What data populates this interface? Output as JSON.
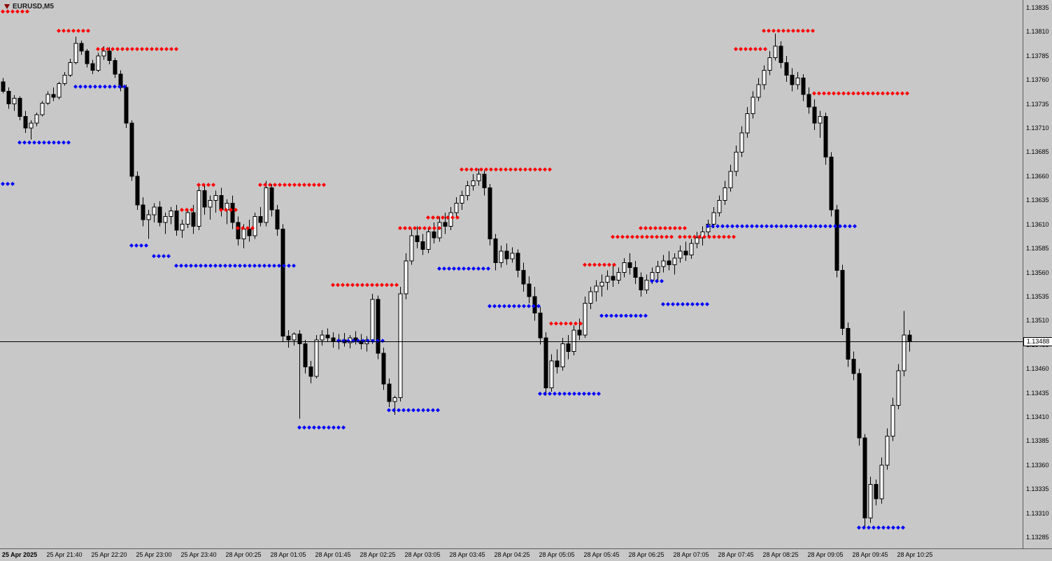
{
  "window": {
    "symbol_label": "EURUSD,M5"
  },
  "colors": {
    "background": "#C8C8C8",
    "bull": "#FFFFFF",
    "bear": "#000000",
    "outline": "#000000",
    "marker_red": "#FF0000",
    "marker_blue": "#0000FF",
    "axis_text": "#000000",
    "price_line": "#000000",
    "price_label_bg": "#FFFFFF"
  },
  "chart_data": {
    "type": "candlestick",
    "symbol": "EURUSD",
    "timeframe": "M5",
    "grid": false,
    "price_base": 1.13,
    "unit": 1e-05,
    "current_price": "1.13488",
    "y_axis": {
      "min": 1.13285,
      "max": 1.13835,
      "step": 0.00025,
      "ticks": [
        "1.13835",
        "1.13810",
        "1.13785",
        "1.13760",
        "1.13735",
        "1.13710",
        "1.13685",
        "1.13660",
        "1.13635",
        "1.13610",
        "1.13585",
        "1.13560",
        "1.13535",
        "1.13510",
        "1.13485",
        "1.13460",
        "1.13435",
        "1.13410",
        "1.13385",
        "1.13360",
        "1.13335",
        "1.13310",
        "1.13285"
      ]
    },
    "x_axis": {
      "labels": [
        "25 Apr 2025",
        "25 Apr 21:40",
        "25 Apr 22:20",
        "25 Apr 23:00",
        "25 Apr 23:40",
        "28 Apr 00:25",
        "28 Apr 01:05",
        "28 Apr 01:45",
        "28 Apr 02:25",
        "28 Apr 03:05",
        "28 Apr 03:45",
        "28 Apr 04:25",
        "28 Apr 05:05",
        "28 Apr 05:45",
        "28 Apr 06:25",
        "28 Apr 07:05",
        "28 Apr 07:45",
        "28 Apr 08:25",
        "28 Apr 09:05",
        "28 Apr 09:45",
        "28 Apr 10:25"
      ]
    },
    "candles": [
      [
        758,
        762,
        746,
        748
      ],
      [
        748,
        752,
        730,
        735
      ],
      [
        735,
        744,
        728,
        741
      ],
      [
        741,
        743,
        718,
        722
      ],
      [
        722,
        728,
        705,
        710
      ],
      [
        710,
        718,
        698,
        715
      ],
      [
        715,
        726,
        712,
        724
      ],
      [
        724,
        738,
        722,
        736
      ],
      [
        736,
        748,
        734,
        745
      ],
      [
        745,
        752,
        738,
        742
      ],
      [
        742,
        758,
        740,
        756
      ],
      [
        756,
        768,
        754,
        765
      ],
      [
        765,
        782,
        763,
        778
      ],
      [
        778,
        805,
        776,
        798
      ],
      [
        798,
        801,
        786,
        790
      ],
      [
        790,
        792,
        773,
        777
      ],
      [
        777,
        781,
        766,
        770
      ],
      [
        770,
        788,
        768,
        785
      ],
      [
        785,
        795,
        781,
        790
      ],
      [
        790,
        794,
        776,
        780
      ],
      [
        780,
        783,
        762,
        766
      ],
      [
        766,
        770,
        748,
        752
      ],
      [
        752,
        755,
        710,
        715
      ],
      [
        715,
        718,
        655,
        660
      ],
      [
        660,
        665,
        625,
        630
      ],
      [
        630,
        638,
        608,
        615
      ],
      [
        615,
        625,
        595,
        620
      ],
      [
        620,
        632,
        612,
        628
      ],
      [
        628,
        634,
        608,
        612
      ],
      [
        612,
        622,
        600,
        618
      ],
      [
        618,
        628,
        610,
        624
      ],
      [
        624,
        630,
        598,
        604
      ],
      [
        604,
        615,
        596,
        610
      ],
      [
        610,
        626,
        606,
        622
      ],
      [
        622,
        630,
        600,
        608
      ],
      [
        608,
        652,
        604,
        645
      ],
      [
        645,
        650,
        620,
        628
      ],
      [
        628,
        640,
        615,
        635
      ],
      [
        635,
        645,
        622,
        640
      ],
      [
        640,
        648,
        618,
        625
      ],
      [
        625,
        636,
        610,
        632
      ],
      [
        632,
        640,
        605,
        612
      ],
      [
        612,
        618,
        588,
        595
      ],
      [
        595,
        610,
        585,
        605
      ],
      [
        605,
        615,
        592,
        598
      ],
      [
        598,
        622,
        595,
        618
      ],
      [
        618,
        628,
        608,
        612
      ],
      [
        612,
        655,
        608,
        648
      ],
      [
        648,
        652,
        618,
        625
      ],
      [
        625,
        630,
        598,
        605
      ],
      [
        605,
        610,
        488,
        494
      ],
      [
        494,
        500,
        482,
        490
      ],
      [
        490,
        498,
        484,
        496
      ],
      [
        496,
        500,
        408,
        486
      ],
      [
        486,
        490,
        455,
        462
      ],
      [
        462,
        468,
        445,
        452
      ],
      [
        452,
        495,
        450,
        490
      ],
      [
        490,
        500,
        484,
        495
      ],
      [
        495,
        502,
        488,
        492
      ],
      [
        492,
        498,
        482,
        488
      ],
      [
        488,
        496,
        480,
        490
      ],
      [
        490,
        497,
        483,
        487
      ],
      [
        487,
        495,
        481,
        492
      ],
      [
        492,
        499,
        485,
        489
      ],
      [
        489,
        496,
        480,
        486
      ],
      [
        486,
        494,
        478,
        490
      ],
      [
        490,
        538,
        486,
        532
      ],
      [
        532,
        536,
        470,
        476
      ],
      [
        476,
        482,
        438,
        444
      ],
      [
        444,
        450,
        420,
        426
      ],
      [
        426,
        432,
        412,
        430
      ],
      [
        430,
        545,
        426,
        538
      ],
      [
        538,
        580,
        532,
        572
      ],
      [
        572,
        605,
        568,
        598
      ],
      [
        598,
        608,
        585,
        592
      ],
      [
        592,
        600,
        578,
        584
      ],
      [
        584,
        606,
        580,
        602
      ],
      [
        602,
        612,
        590,
        596
      ],
      [
        596,
        618,
        592,
        612
      ],
      [
        612,
        622,
        600,
        608
      ],
      [
        608,
        628,
        604,
        622
      ],
      [
        622,
        638,
        618,
        632
      ],
      [
        632,
        645,
        625,
        640
      ],
      [
        640,
        655,
        635,
        650
      ],
      [
        650,
        662,
        645,
        655
      ],
      [
        655,
        668,
        650,
        662
      ],
      [
        662,
        666,
        640,
        648
      ],
      [
        648,
        652,
        588,
        595
      ],
      [
        595,
        600,
        562,
        570
      ],
      [
        570,
        588,
        565,
        582
      ],
      [
        582,
        590,
        568,
        574
      ],
      [
        574,
        586,
        570,
        580
      ],
      [
        580,
        584,
        555,
        562
      ],
      [
        562,
        570,
        540,
        548
      ],
      [
        548,
        556,
        528,
        535
      ],
      [
        535,
        545,
        510,
        518
      ],
      [
        518,
        524,
        485,
        492
      ],
      [
        492,
        498,
        432,
        440
      ],
      [
        440,
        475,
        436,
        468
      ],
      [
        468,
        480,
        455,
        462
      ],
      [
        462,
        492,
        458,
        486
      ],
      [
        486,
        495,
        470,
        478
      ],
      [
        478,
        505,
        474,
        500
      ],
      [
        500,
        512,
        490,
        495
      ],
      [
        495,
        535,
        492,
        528
      ],
      [
        528,
        545,
        522,
        540
      ],
      [
        540,
        552,
        530,
        546
      ],
      [
        546,
        558,
        535,
        550
      ],
      [
        550,
        562,
        542,
        556
      ],
      [
        556,
        568,
        545,
        552
      ],
      [
        552,
        565,
        548,
        560
      ],
      [
        560,
        575,
        555,
        570
      ],
      [
        570,
        580,
        558,
        565
      ],
      [
        565,
        572,
        548,
        555
      ],
      [
        555,
        560,
        535,
        542
      ],
      [
        542,
        558,
        538,
        552
      ],
      [
        552,
        565,
        548,
        560
      ],
      [
        560,
        572,
        552,
        566
      ],
      [
        566,
        578,
        560,
        572
      ],
      [
        572,
        582,
        562,
        568
      ],
      [
        568,
        580,
        558,
        575
      ],
      [
        575,
        588,
        570,
        582
      ],
      [
        582,
        592,
        572,
        578
      ],
      [
        578,
        595,
        574,
        590
      ],
      [
        590,
        602,
        585,
        596
      ],
      [
        596,
        608,
        588,
        602
      ],
      [
        602,
        615,
        596,
        610
      ],
      [
        610,
        628,
        606,
        622
      ],
      [
        622,
        640,
        618,
        635
      ],
      [
        635,
        655,
        630,
        648
      ],
      [
        648,
        672,
        644,
        665
      ],
      [
        665,
        692,
        660,
        685
      ],
      [
        685,
        712,
        680,
        705
      ],
      [
        705,
        732,
        700,
        725
      ],
      [
        725,
        748,
        720,
        742
      ],
      [
        742,
        762,
        738,
        755
      ],
      [
        755,
        775,
        750,
        770
      ],
      [
        770,
        790,
        765,
        783
      ],
      [
        783,
        808,
        780,
        795
      ],
      [
        795,
        800,
        772,
        778
      ],
      [
        778,
        785,
        758,
        765
      ],
      [
        765,
        772,
        748,
        755
      ],
      [
        755,
        768,
        750,
        762
      ],
      [
        762,
        766,
        738,
        745
      ],
      [
        745,
        752,
        725,
        732
      ],
      [
        732,
        740,
        708,
        715
      ],
      [
        715,
        728,
        700,
        722
      ],
      [
        722,
        726,
        672,
        680
      ],
      [
        680,
        685,
        618,
        625
      ],
      [
        625,
        630,
        555,
        562
      ],
      [
        562,
        568,
        495,
        502
      ],
      [
        502,
        508,
        462,
        470
      ],
      [
        470,
        478,
        448,
        455
      ],
      [
        455,
        460,
        380,
        388
      ],
      [
        388,
        392,
        296,
        305
      ],
      [
        305,
        348,
        300,
        340
      ],
      [
        340,
        345,
        318,
        325
      ],
      [
        325,
        368,
        320,
        360
      ],
      [
        360,
        398,
        355,
        390
      ],
      [
        390,
        430,
        385,
        422
      ],
      [
        422,
        465,
        418,
        458
      ],
      [
        458,
        520,
        452,
        495
      ],
      [
        495,
        500,
        478,
        488
      ]
    ],
    "markers": [
      {
        "color": "red",
        "price": 831,
        "from": 0,
        "to": 5
      },
      {
        "color": "red",
        "price": 811,
        "from": 10,
        "to": 16
      },
      {
        "color": "red",
        "price": 792,
        "from": 17,
        "to": 31
      },
      {
        "color": "red",
        "price": 625,
        "from": 32,
        "to": 34
      },
      {
        "color": "red",
        "price": 651,
        "from": 35,
        "to": 38
      },
      {
        "color": "red",
        "price": 625,
        "from": 39,
        "to": 42
      },
      {
        "color": "red",
        "price": 606,
        "from": 42,
        "to": 45
      },
      {
        "color": "red",
        "price": 651,
        "from": 46,
        "to": 58
      },
      {
        "color": "red",
        "price": 547,
        "from": 59,
        "to": 71
      },
      {
        "color": "red",
        "price": 606,
        "from": 71,
        "to": 78
      },
      {
        "color": "red",
        "price": 617,
        "from": 76,
        "to": 82
      },
      {
        "color": "red",
        "price": 667,
        "from": 82,
        "to": 98
      },
      {
        "color": "red",
        "price": 507,
        "from": 98,
        "to": 104
      },
      {
        "color": "red",
        "price": 568,
        "from": 104,
        "to": 110
      },
      {
        "color": "red",
        "price": 597,
        "from": 109,
        "to": 120
      },
      {
        "color": "red",
        "price": 606,
        "from": 114,
        "to": 122
      },
      {
        "color": "red",
        "price": 597,
        "from": 121,
        "to": 131
      },
      {
        "color": "red",
        "price": 792,
        "from": 131,
        "to": 137
      },
      {
        "color": "red",
        "price": 811,
        "from": 136,
        "to": 145
      },
      {
        "color": "red",
        "price": 746,
        "from": 145,
        "to": 162
      },
      {
        "color": "blue",
        "price": 652,
        "from": 0,
        "to": 2
      },
      {
        "color": "blue",
        "price": 695,
        "from": 3,
        "to": 12
      },
      {
        "color": "blue",
        "price": 753,
        "from": 13,
        "to": 22
      },
      {
        "color": "blue",
        "price": 588,
        "from": 23,
        "to": 26
      },
      {
        "color": "blue",
        "price": 577,
        "from": 27,
        "to": 30
      },
      {
        "color": "blue",
        "price": 567,
        "from": 31,
        "to": 52
      },
      {
        "color": "blue",
        "price": 399,
        "from": 53,
        "to": 61
      },
      {
        "color": "blue",
        "price": 489,
        "from": 60,
        "to": 68
      },
      {
        "color": "blue",
        "price": 417,
        "from": 69,
        "to": 78
      },
      {
        "color": "blue",
        "price": 564,
        "from": 78,
        "to": 87
      },
      {
        "color": "blue",
        "price": 525,
        "from": 87,
        "to": 96
      },
      {
        "color": "blue",
        "price": 434,
        "from": 96,
        "to": 107
      },
      {
        "color": "blue",
        "price": 515,
        "from": 107,
        "to": 115
      },
      {
        "color": "blue",
        "price": 551,
        "from": 116,
        "to": 118
      },
      {
        "color": "blue",
        "price": 527,
        "from": 118,
        "to": 126
      },
      {
        "color": "blue",
        "price": 608,
        "from": 126,
        "to": 153
      },
      {
        "color": "blue",
        "price": 295,
        "from": 153,
        "to": 161
      }
    ]
  }
}
